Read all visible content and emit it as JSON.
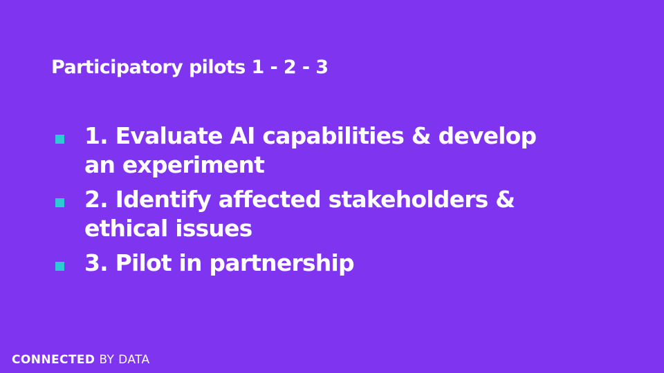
{
  "slide": {
    "title": "Participatory pilots 1 - 2 - 3",
    "bullets": [
      {
        "text": "1. Evaluate AI capabilities & develop an experiment"
      },
      {
        "text": "2. Identify affected stakeholders & ethical issues"
      },
      {
        "text": "3. Pilot in partnership"
      }
    ],
    "footer": {
      "logo_strong": "CONNECTED",
      "logo_light": "BY DATA"
    }
  },
  "colors": {
    "background": "#7f35ef",
    "text": "#ffffff",
    "bullet_marker": "#2ec9d3"
  }
}
